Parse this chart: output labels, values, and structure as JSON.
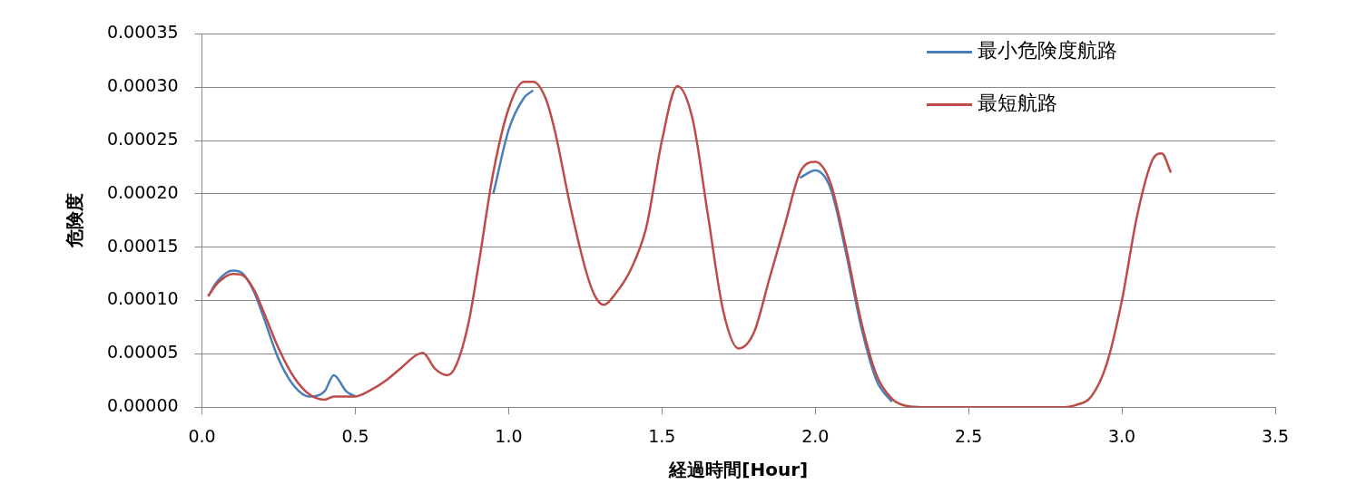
{
  "chart_data": {
    "type": "line",
    "xlabel": "経過時間[Hour]",
    "ylabel": "危険度",
    "x": [
      0.02,
      0.05,
      0.1,
      0.13,
      0.17,
      0.2,
      0.25,
      0.3,
      0.35,
      0.4,
      0.43,
      0.47,
      0.5,
      0.55,
      0.6,
      0.65,
      0.7,
      0.72,
      0.76,
      0.8,
      0.83,
      0.87,
      0.9,
      0.95,
      1.0,
      1.05,
      1.08,
      1.12,
      1.15,
      1.2,
      1.25,
      1.28,
      1.31,
      1.35,
      1.4,
      1.45,
      1.5,
      1.55,
      1.6,
      1.65,
      1.7,
      1.75,
      1.8,
      1.85,
      1.9,
      1.95,
      2.0,
      2.05,
      2.1,
      2.15,
      2.2,
      2.25,
      2.3,
      2.35,
      2.5,
      2.65,
      2.8,
      2.85,
      2.9,
      2.95,
      3.0,
      3.05,
      3.1,
      3.13,
      3.16
    ],
    "series": [
      {
        "name": "最小危険度航路",
        "color": "#4a7ebb",
        "values": [
          0.000104,
          0.000118,
          0.000128,
          0.000126,
          0.000108,
          8.5e-05,
          4.5e-05,
          2e-05,
          1e-05,
          1.5e-05,
          3e-05,
          1.5e-05,
          1e-05,
          null,
          null,
          null,
          null,
          null,
          null,
          null,
          null,
          null,
          null,
          0.0002,
          0.00026,
          0.00029,
          0.000297,
          null,
          null,
          null,
          null,
          null,
          null,
          null,
          null,
          null,
          null,
          null,
          null,
          null,
          null,
          null,
          null,
          null,
          null,
          0.000215,
          0.000222,
          0.000205,
          0.000145,
          7.5e-05,
          2.5e-05,
          5e-06,
          null,
          null,
          null,
          null,
          null,
          null,
          null,
          null,
          null,
          null,
          null,
          null,
          null
        ]
      },
      {
        "name": "最短航路",
        "color": "#be4b48",
        "values": [
          0.000104,
          0.000116,
          0.000125,
          0.000124,
          0.00011,
          9e-05,
          5.5e-05,
          2.8e-05,
          1.2e-05,
          7e-06,
          1e-05,
          1e-05,
          1e-05,
          1.6e-05,
          2.5e-05,
          3.7e-05,
          4.9e-05,
          5.1e-05,
          3.6e-05,
          3e-05,
          4e-05,
          8e-05,
          0.00013,
          0.00022,
          0.00028,
          0.000305,
          0.000305,
          0.00029,
          0.00026,
          0.00019,
          0.00013,
          0.000105,
          9.6e-05,
          0.000107,
          0.00013,
          0.00017,
          0.00025,
          0.000301,
          0.00027,
          0.00018,
          9e-05,
          5.5e-05,
          7e-05,
          0.00012,
          0.00017,
          0.00022,
          0.00023,
          0.00021,
          0.00015,
          8e-05,
          3e-05,
          8e-06,
          1e-06,
          0,
          0,
          0,
          0,
          2e-06,
          1e-05,
          4e-05,
          0.0001,
          0.00018,
          0.000232,
          0.000238,
          0.00022
        ]
      }
    ],
    "xlim": [
      0,
      3.5
    ],
    "xticks": [
      {
        "value": 0,
        "label": "0.0"
      },
      {
        "value": 0.5,
        "label": "0.5"
      },
      {
        "value": 1,
        "label": "1.0"
      },
      {
        "value": 1.5,
        "label": "1.5"
      },
      {
        "value": 2,
        "label": "2.0"
      },
      {
        "value": 2.5,
        "label": "2.5"
      },
      {
        "value": 3,
        "label": "3.0"
      },
      {
        "value": 3.5,
        "label": "3.5"
      }
    ],
    "ylim": [
      0,
      0.00035
    ],
    "yticks": [
      {
        "value": 0,
        "label": "0.00000"
      },
      {
        "value": 5e-05,
        "label": "0.00005"
      },
      {
        "value": 0.0001,
        "label": "0.00010"
      },
      {
        "value": 0.00015,
        "label": "0.00015"
      },
      {
        "value": 0.0002,
        "label": "0.00020"
      },
      {
        "value": 0.00025,
        "label": "0.00025"
      },
      {
        "value": 0.0003,
        "label": "0.00030"
      },
      {
        "value": 0.00035,
        "label": "0.00035"
      }
    ],
    "grid": "y",
    "legend": "top right",
    "marker": "none",
    "line_style": "solid"
  }
}
